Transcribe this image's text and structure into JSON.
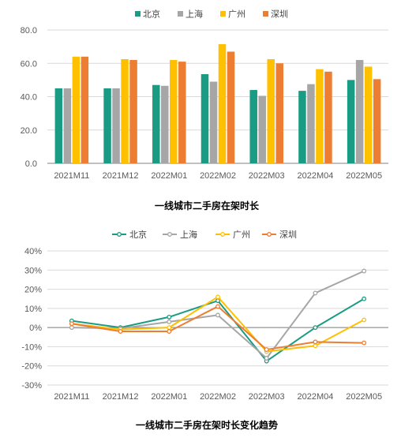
{
  "colors": {
    "beijing": "#1A9C84",
    "shanghai": "#A6A6A6",
    "guangzhou": "#FFC000",
    "shenzhen": "#ED7D31",
    "grid": "#D9D9D9",
    "axis": "#808080"
  },
  "chart_data": [
    {
      "type": "bar",
      "title": "一线城市二手房在架时长",
      "legend_position": "top",
      "grid": true,
      "categories": [
        "2021M11",
        "2021M12",
        "2022M01",
        "2022M02",
        "2022M03",
        "2022M04",
        "2022M05"
      ],
      "ylim": [
        0,
        80
      ],
      "yticks": [
        "0.0",
        "20.0",
        "40.0",
        "60.0",
        "80.0"
      ],
      "series": [
        {
          "name": "北京",
          "values": [
            45,
            45,
            47,
            53.5,
            44,
            43.5,
            50
          ]
        },
        {
          "name": "上海",
          "values": [
            45,
            45,
            46.5,
            49,
            40.5,
            47.5,
            62
          ]
        },
        {
          "name": "广州",
          "values": [
            64,
            62.5,
            62,
            71.5,
            62.5,
            56.5,
            58
          ]
        },
        {
          "name": "深圳",
          "values": [
            64,
            62,
            61,
            67,
            60,
            55,
            50.5
          ]
        }
      ]
    },
    {
      "type": "line",
      "title": "一线城市二手房在架时长变化趋势",
      "legend_position": "top",
      "grid": true,
      "categories": [
        "2021M11",
        "2021M12",
        "2022M01",
        "2022M02",
        "2022M03",
        "2022M04",
        "2022M05"
      ],
      "ylim": [
        -30,
        40
      ],
      "yticks": [
        "-30%",
        "-20%",
        "-10%",
        "0%",
        "10%",
        "20%",
        "30%",
        "40%"
      ],
      "series": [
        {
          "name": "北京",
          "values": [
            3.5,
            0,
            5.5,
            14,
            -17.5,
            0,
            15
          ]
        },
        {
          "name": "上海",
          "values": [
            0,
            -0.5,
            3,
            6.5,
            -16,
            18,
            29.5
          ]
        },
        {
          "name": "广州",
          "values": [
            2,
            -1,
            0,
            16,
            -12.5,
            -9.5,
            4
          ]
        },
        {
          "name": "深圳",
          "values": [
            2,
            -2,
            -2,
            11,
            -11.5,
            -7.5,
            -8
          ]
        }
      ]
    }
  ]
}
